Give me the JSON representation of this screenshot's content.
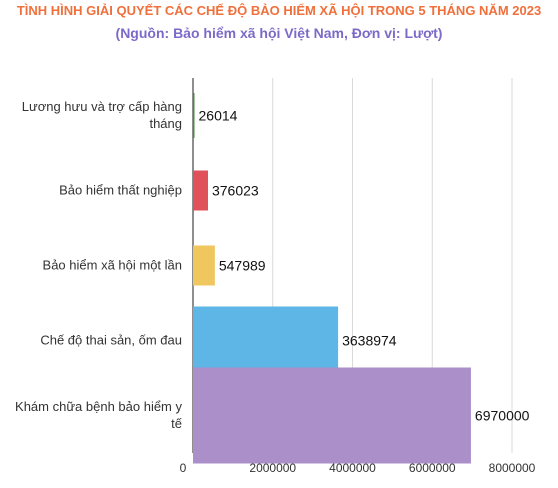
{
  "chart_data": {
    "type": "bar",
    "orientation": "horizontal",
    "title": "TÌNH HÌNH GIẢI QUYẾT CÁC CHẾ ĐỘ BẢO HIỂM XÃ HỘI TRONG 5 THÁNG NĂM 2023",
    "subtitle": "(Nguồn: Bảo hiểm xã hội Việt Nam, Đơn vị: Lượt)",
    "categories": [
      [
        "Lương hưu và trợ cấp hàng",
        "tháng"
      ],
      [
        "Bảo hiểm thất nghiệp"
      ],
      [
        "Bảo hiểm xã hội một lần"
      ],
      [
        "Chế độ thai sản, ốm đau"
      ],
      [
        "Khám chữa bệnh bảo hiểm y",
        "tế"
      ]
    ],
    "values": [
      26014,
      376023,
      547989,
      3638974,
      6970000
    ],
    "value_labels": [
      "26014",
      "376023",
      "547989",
      "3638974",
      "6970000"
    ],
    "colors": [
      "#4a8c3f",
      "#e0515a",
      "#f0c75e",
      "#5db6e6",
      "#ab8fc8"
    ],
    "xlim": [
      0,
      8000000
    ],
    "xticks": [
      0,
      2000000,
      4000000,
      6000000,
      8000000
    ],
    "xtick_labels": [
      "0",
      "2000000",
      "4000000",
      "6000000",
      "8000000"
    ],
    "grid": "vertical",
    "legend": "none"
  }
}
